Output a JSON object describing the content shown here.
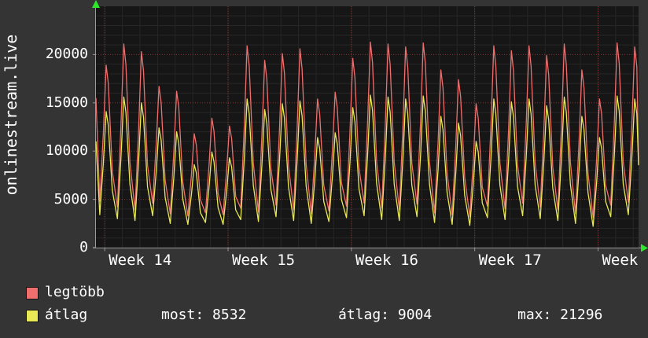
{
  "app": {
    "background_color": "#343434",
    "text_color": "#ffffff"
  },
  "chart_data": {
    "type": "line",
    "y_axis_title": "onlinestream.live",
    "ylim": [
      0,
      25000
    ],
    "ytick_values": [
      0,
      5000,
      10000,
      15000,
      20000
    ],
    "yticks": [
      "0",
      "5000",
      "10000",
      "15000",
      "20000"
    ],
    "x_week_labels": [
      "Week 14",
      "Week 15",
      "Week 16",
      "Week 17",
      "Week"
    ],
    "days_shown": 30.8,
    "week_start_offset_days": 0.5,
    "grid": {
      "plot_background": "#161616",
      "minor_color": "#262626",
      "major_color": "rgba(210,70,70,0.6)"
    },
    "axis_arrow_color": "#2ee62e",
    "series": [
      {
        "name": "legtöbb",
        "color": "#ef6e6e",
        "start_value": 15500,
        "end_value": 8700,
        "daily_peaks": [
          18900,
          21100,
          20300,
          16700,
          16200,
          11800,
          13400,
          12600,
          20900,
          19400,
          20100,
          20600,
          15400,
          16100,
          19600,
          21296,
          21100,
          20800,
          21200,
          18400,
          17400,
          14900,
          20900,
          20400,
          20900,
          19900,
          21100,
          18400,
          15400,
          21200,
          20800
        ],
        "daily_troughs": [
          4800,
          4200,
          3900,
          4600,
          3500,
          3300,
          3600,
          3400,
          4100,
          3700,
          4400,
          3900,
          3500,
          3800,
          4300,
          4600,
          4100,
          3900,
          4500,
          3600,
          3400,
          3200,
          4300,
          4000,
          4600,
          4200,
          3900,
          3500,
          3100,
          4400,
          4700
        ]
      },
      {
        "name": "átlag",
        "color": "#e9e956",
        "start_value": 11000,
        "end_value": 8532,
        "daily_peaks": [
          14100,
          15600,
          15000,
          12400,
          12000,
          8600,
          9900,
          9300,
          15400,
          14300,
          14900,
          15200,
          11400,
          11900,
          14500,
          15800,
          15600,
          15400,
          15700,
          13600,
          12900,
          11000,
          15400,
          15100,
          15400,
          14700,
          15600,
          13600,
          11400,
          15700,
          15400
        ],
        "daily_troughs": [
          3400,
          3000,
          2800,
          3300,
          2500,
          2400,
          2600,
          2400,
          2900,
          2700,
          3200,
          2800,
          2500,
          2700,
          3100,
          3300,
          2900,
          2800,
          3200,
          2600,
          2400,
          2300,
          3100,
          2900,
          3300,
          3000,
          2800,
          2500,
          2200,
          3200,
          3400
        ]
      }
    ],
    "legend": {
      "items": [
        {
          "label": "legtöbb",
          "color": "#ef6e6e"
        },
        {
          "label": "átlag",
          "color": "#e9e956"
        }
      ]
    },
    "stats": {
      "most": "most: 8532",
      "atlag": "átlag: 9004",
      "max": "max: 21296"
    }
  }
}
